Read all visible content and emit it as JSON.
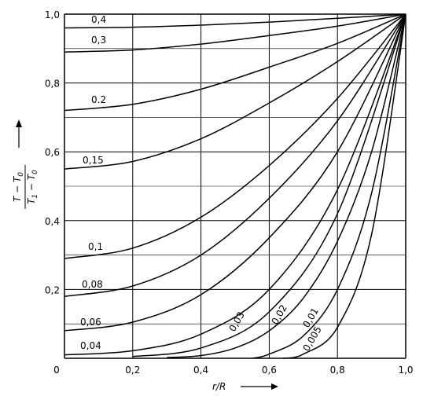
{
  "chart_data": {
    "type": "line",
    "title": "",
    "xlabel": "r/R",
    "ylabel": "(T − T0)/(T1 − T0)",
    "ylabel_parts": {
      "num_a": "T − T",
      "num_sub": "0",
      "den_a": "T",
      "den_sub1": "1",
      "den_b": " − T",
      "den_sub2": "0"
    },
    "xlim": [
      0,
      1
    ],
    "ylim": [
      0,
      1
    ],
    "grid": true,
    "x_ticks": [
      "0",
      "0,2",
      "0,4",
      "0,6",
      "0,8",
      "1,0"
    ],
    "y_ticks": [
      "0,2",
      "0,4",
      "0,6",
      "0,8",
      "1,0"
    ],
    "series": [
      {
        "name": "0,4",
        "points": [
          [
            0,
            0.96
          ],
          [
            0.2,
            0.962
          ],
          [
            0.4,
            0.968
          ],
          [
            0.6,
            0.977
          ],
          [
            0.8,
            0.988
          ],
          [
            1,
            1
          ]
        ]
      },
      {
        "name": "0,3",
        "points": [
          [
            0,
            0.89
          ],
          [
            0.2,
            0.896
          ],
          [
            0.4,
            0.913
          ],
          [
            0.6,
            0.938
          ],
          [
            0.8,
            0.965
          ],
          [
            1,
            1
          ]
        ]
      },
      {
        "name": "0.2",
        "points": [
          [
            0,
            0.72
          ],
          [
            0.2,
            0.738
          ],
          [
            0.4,
            0.782
          ],
          [
            0.6,
            0.846
          ],
          [
            0.8,
            0.915
          ],
          [
            1,
            1
          ]
        ]
      },
      {
        "name": "0,15",
        "points": [
          [
            0,
            0.55
          ],
          [
            0.2,
            0.572
          ],
          [
            0.4,
            0.638
          ],
          [
            0.6,
            0.742
          ],
          [
            0.8,
            0.862
          ],
          [
            1,
            1
          ]
        ]
      },
      {
        "name": "0,1",
        "points": [
          [
            0,
            0.29
          ],
          [
            0.2,
            0.32
          ],
          [
            0.4,
            0.41
          ],
          [
            0.6,
            0.56
          ],
          [
            0.8,
            0.755
          ],
          [
            1,
            1
          ]
        ]
      },
      {
        "name": "0,08",
        "points": [
          [
            0,
            0.18
          ],
          [
            0.2,
            0.21
          ],
          [
            0.4,
            0.3
          ],
          [
            0.6,
            0.465
          ],
          [
            0.8,
            0.69
          ],
          [
            1,
            1
          ]
        ]
      },
      {
        "name": "0,06",
        "points": [
          [
            0,
            0.08
          ],
          [
            0.2,
            0.105
          ],
          [
            0.4,
            0.185
          ],
          [
            0.6,
            0.35
          ],
          [
            0.8,
            0.6
          ],
          [
            1,
            1
          ]
        ]
      },
      {
        "name": "0,04",
        "points": [
          [
            0,
            0.01
          ],
          [
            0.2,
            0.022
          ],
          [
            0.4,
            0.07
          ],
          [
            0.6,
            0.2
          ],
          [
            0.8,
            0.49
          ],
          [
            1,
            1
          ]
        ]
      },
      {
        "name": "0,03",
        "points": [
          [
            0.2,
            0.005
          ],
          [
            0.4,
            0.03
          ],
          [
            0.6,
            0.135
          ],
          [
            0.8,
            0.42
          ],
          [
            1,
            1
          ]
        ]
      },
      {
        "name": "0,02",
        "points": [
          [
            0.3,
            0.002
          ],
          [
            0.4,
            0.008
          ],
          [
            0.5,
            0.03
          ],
          [
            0.6,
            0.08
          ],
          [
            0.7,
            0.175
          ],
          [
            0.8,
            0.34
          ],
          [
            0.9,
            0.6
          ],
          [
            1,
            1
          ]
        ]
      },
      {
        "name": "0,01",
        "points": [
          [
            0.55,
            0
          ],
          [
            0.6,
            0.012
          ],
          [
            0.7,
            0.065
          ],
          [
            0.8,
            0.2
          ],
          [
            0.9,
            0.48
          ],
          [
            1,
            1
          ]
        ]
      },
      {
        "name": "0,005",
        "points": [
          [
            0.64,
            0
          ],
          [
            0.7,
            0.012
          ],
          [
            0.8,
            0.09
          ],
          [
            0.9,
            0.36
          ],
          [
            1,
            1
          ]
        ]
      }
    ]
  }
}
